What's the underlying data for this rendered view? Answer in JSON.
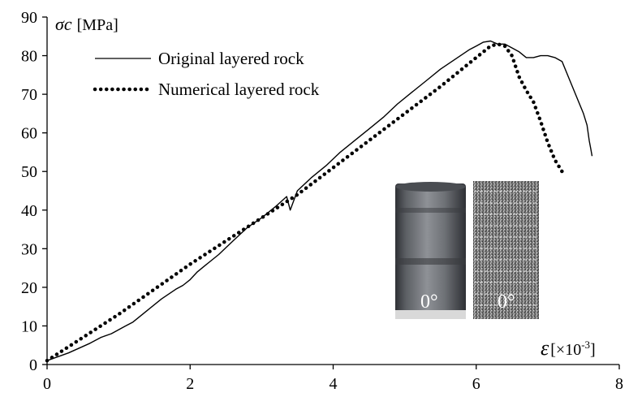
{
  "chart_data": {
    "type": "line",
    "ylabel": {
      "symbol": "σc",
      "unit": "[MPa]"
    },
    "xlabel": {
      "symbol": "ε",
      "unit": "[×10",
      "exp": "-3",
      "close": "]"
    },
    "xlim": [
      0,
      8
    ],
    "ylim": [
      0,
      90
    ],
    "x_ticks": [
      "0",
      "2",
      "4",
      "6",
      "8"
    ],
    "y_ticks": [
      "0",
      "10",
      "20",
      "30",
      "40",
      "50",
      "60",
      "70",
      "80",
      "90"
    ],
    "grid": false,
    "legend_position": "top-left",
    "series": [
      {
        "name": "Original layered rock",
        "style": "solid",
        "x": [
          0,
          0.3,
          0.6,
          0.75,
          0.9,
          1.1,
          1.2,
          1.4,
          1.6,
          1.8,
          1.9,
          2.0,
          2.1,
          2.2,
          2.4,
          2.6,
          2.8,
          3.0,
          3.2,
          3.35,
          3.4,
          3.5,
          3.7,
          3.9,
          4.1,
          4.3,
          4.5,
          4.7,
          4.9,
          5.1,
          5.3,
          5.5,
          5.7,
          5.9,
          6.0,
          6.1,
          6.2,
          6.3,
          6.4,
          6.5,
          6.6,
          6.7,
          6.8,
          6.9,
          7.0,
          7.1,
          7.2,
          7.3,
          7.4,
          7.5,
          7.55,
          7.58,
          7.6,
          7.62
        ],
        "y": [
          1,
          3,
          5.5,
          7,
          8,
          10,
          11,
          14,
          17,
          19.5,
          20.5,
          22,
          24,
          25.5,
          28.5,
          32,
          35.5,
          38,
          41,
          43.5,
          40,
          45,
          48.5,
          51.5,
          55,
          58,
          61,
          64,
          67.5,
          70.5,
          73.5,
          76.5,
          79,
          81.5,
          82.5,
          83.5,
          83.8,
          83,
          83,
          82,
          81,
          79.5,
          79.5,
          80,
          80,
          79.5,
          78.5,
          74,
          69.5,
          65,
          62,
          58,
          56,
          54
        ]
      },
      {
        "name": "Numerical layered rock",
        "style": "dotted",
        "x": [
          0,
          0.5,
          1.0,
          1.5,
          2.0,
          2.5,
          3.0,
          3.5,
          4.0,
          4.5,
          5.0,
          5.5,
          5.8,
          6.0,
          6.2,
          6.3,
          6.4,
          6.5,
          6.6,
          6.7,
          6.8,
          6.9,
          7.0,
          7.1,
          7.2
        ],
        "y": [
          1,
          7,
          13,
          19.5,
          26,
          32,
          38,
          44,
          51,
          58,
          65,
          72,
          76.5,
          79.5,
          82.5,
          83,
          82.5,
          80,
          74.5,
          71,
          68,
          63,
          57.5,
          53,
          50
        ]
      }
    ]
  },
  "photos": {
    "left_label": "0°",
    "right_label": "0°"
  }
}
